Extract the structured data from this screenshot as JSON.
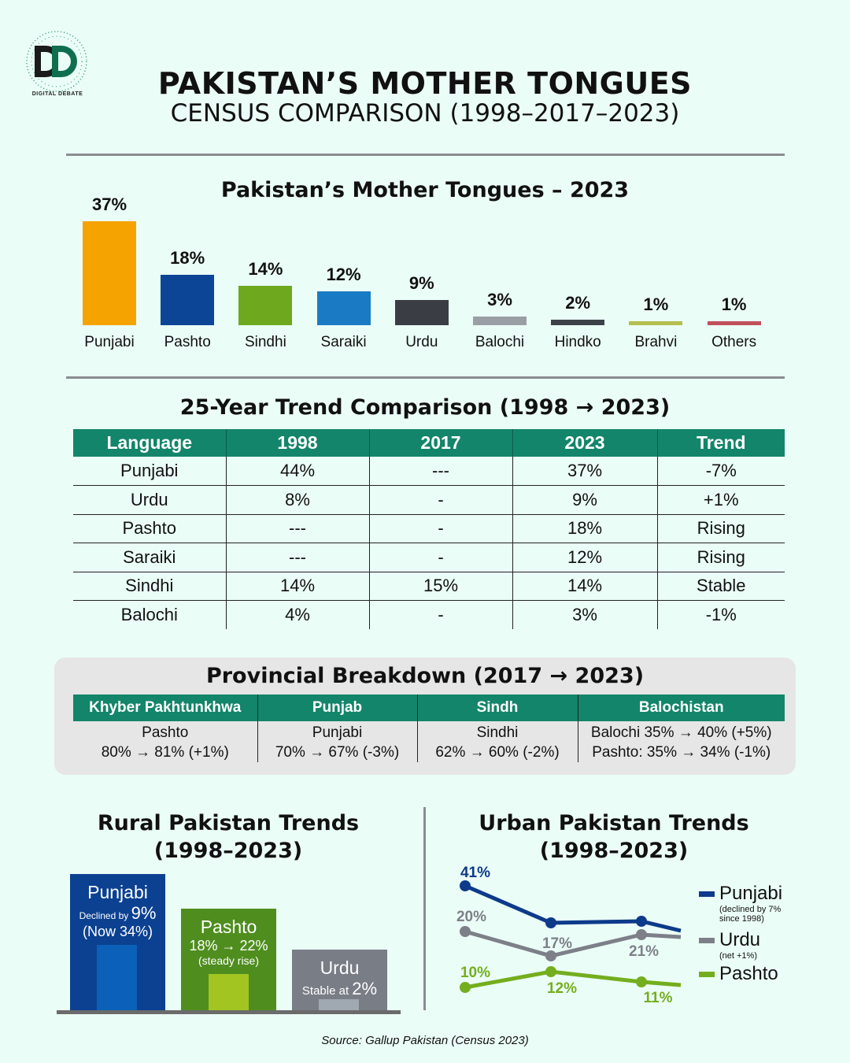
{
  "logo": {
    "text": "DIGITAL DEBATE"
  },
  "header": {
    "title": "PAKISTAN’S MOTHER TONGUES",
    "subtitle": "CENSUS COMPARISON (1998–2017–2023)"
  },
  "chart_data": [
    {
      "type": "bar",
      "title": "Pakistan’s Mother Tongues – 2023",
      "categories": [
        "Punjabi",
        "Pashto",
        "Sindhi",
        "Saraiki",
        "Urdu",
        "Balochi",
        "Hindko",
        "Brahvi",
        "Others"
      ],
      "values": [
        37,
        18,
        14,
        12,
        9,
        3,
        2,
        1,
        1
      ],
      "labels": [
        "37%",
        "18%",
        "14%",
        "12%",
        "9%",
        "3%",
        "2%",
        "1%",
        "1%"
      ],
      "colors": [
        "#f5a300",
        "#0d4596",
        "#6ea81e",
        "#1a7bc4",
        "#3a3e44",
        "#9a9ea5",
        "#3d4248",
        "#b5be4e",
        "#c0505a"
      ],
      "ylabel": "",
      "xlabel": ""
    },
    {
      "type": "line",
      "title": "Urban Pakistan Trends",
      "subtitle": "(1998–2023)",
      "series": [
        {
          "name": "Punjabi",
          "note": "(declined by 7% since 1998)",
          "color": "#0d3a8a",
          "labels": [
            "41%",
            "",
            "",
            ""
          ]
        },
        {
          "name": "Urdu",
          "note": "(net +1%)",
          "color": "#7d8089",
          "labels": [
            "20%",
            "17%",
            "21%",
            ""
          ]
        },
        {
          "name": "Pashto",
          "note": "",
          "color": "#74ae1e",
          "labels": [
            "10%",
            "12%",
            "11%",
            ""
          ]
        }
      ]
    }
  ],
  "trend": {
    "title": "25-Year Trend Comparison (1998 → 2023)",
    "headers": [
      "Language",
      "1998",
      "2017",
      "2023",
      "Trend"
    ],
    "rows": [
      [
        "Punjabi",
        "44%",
        "---",
        "37%",
        "-7%"
      ],
      [
        "Urdu",
        "8%",
        "-",
        "9%",
        "+1%"
      ],
      [
        "Pashto",
        "---",
        "-",
        "18%",
        "Rising"
      ],
      [
        "Saraiki",
        "---",
        "-",
        "12%",
        "Rising"
      ],
      [
        "Sindhi",
        "14%",
        "15%",
        "14%",
        "Stable"
      ],
      [
        "Balochi",
        "4%",
        "-",
        "3%",
        "-1%"
      ]
    ]
  },
  "provincial": {
    "title": "Provincial Breakdown (2017 → 2023)",
    "headers": [
      "Khyber Pakhtunkhwa",
      "Punjab",
      "Sindh",
      "Balochistan"
    ],
    "cells": [
      [
        "Pashto",
        "80% → 81% (+1%)"
      ],
      [
        "Punjabi",
        "70% → 67% (-3%)"
      ],
      [
        "Sindhi",
        "62% → 60% (-2%)"
      ],
      [
        "Balochi 35% → 40% (+5%)",
        "Pashto: 35% → 34% (-1%)"
      ]
    ]
  },
  "rural": {
    "title": "Rural Pakistan Trends",
    "subtitle": "(1998–2023)",
    "boxes": [
      {
        "name": "Punjabi",
        "small": "Declined by",
        "big": "9%",
        "line3": "(Now 34%)"
      },
      {
        "name": "Pashto",
        "line2": "18% → 22%",
        "line3": "(steady rise)"
      },
      {
        "name": "Urdu",
        "small": "Stable at",
        "big": "2%"
      }
    ]
  },
  "source": "Source: Gallup Pakistan (Census 2023)"
}
